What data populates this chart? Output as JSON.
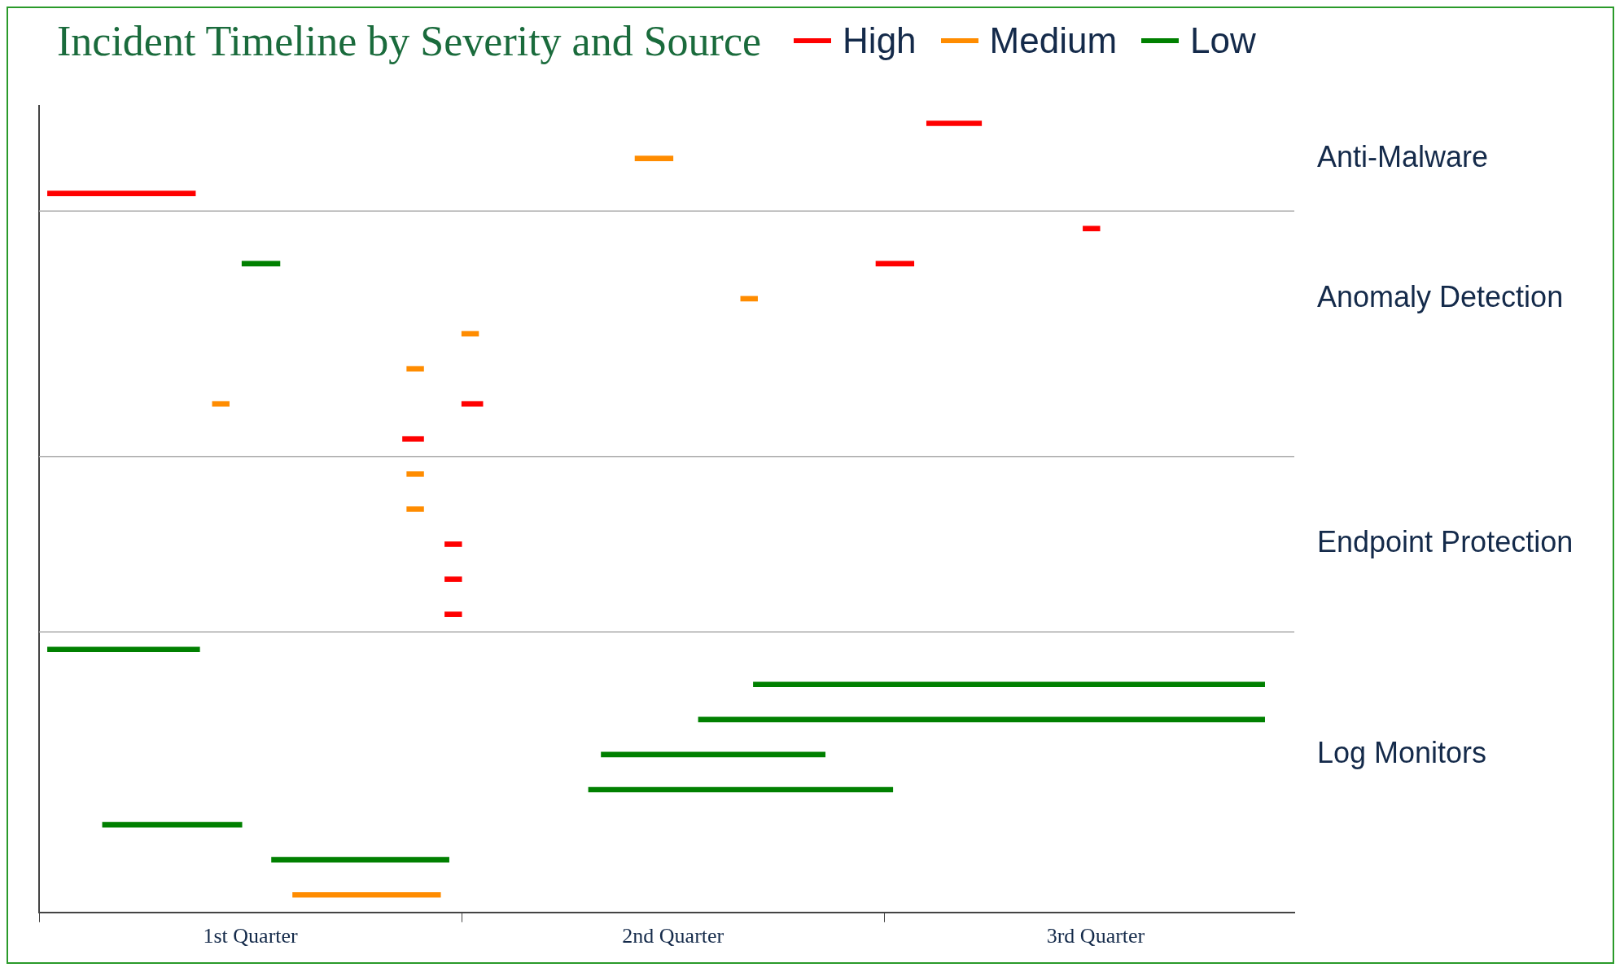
{
  "chart_data": {
    "type": "bar",
    "orientation": "horizontal",
    "title": "Incident Timeline by Severity and Source",
    "legend": "top",
    "categories": [
      null,
      null,
      null,
      null,
      null,
      null,
      null,
      null,
      null,
      null,
      null,
      null,
      null,
      null,
      null,
      null,
      null,
      null,
      null,
      null,
      null,
      null,
      null
    ],
    "y2_categories": [
      null,
      "Anti-Malware",
      null,
      null,
      null,
      "Anomaly Detection",
      null,
      null,
      null,
      null,
      null,
      null,
      "Endpoint Protection",
      null,
      null,
      null,
      null,
      null,
      "Log Monitors",
      null,
      null,
      null,
      null
    ],
    "series": [
      {
        "name": "High",
        "color": "#ff0000",
        "base": [
          2.6,
          null,
          0.52,
          2.97,
          2.48,
          null,
          null,
          null,
          1.5,
          1.36,
          null,
          null,
          1.46,
          1.46,
          1.46,
          null,
          null,
          null,
          null,
          null,
          null,
          null,
          null
        ],
        "values": [
          0.13,
          null,
          0.35,
          0.04,
          0.09,
          null,
          null,
          null,
          0.05,
          0.05,
          null,
          null,
          0.04,
          0.04,
          0.04,
          null,
          null,
          null,
          null,
          null,
          null,
          null,
          null
        ]
      },
      {
        "name": "Medium",
        "color": "#ff8c00",
        "base": [
          null,
          1.91,
          null,
          null,
          null,
          2.16,
          1.5,
          1.37,
          0.91,
          null,
          1.37,
          1.37,
          null,
          null,
          null,
          null,
          null,
          null,
          null,
          null,
          null,
          null,
          1.1
        ],
        "values": [
          null,
          0.09,
          null,
          null,
          null,
          0.04,
          0.04,
          0.04,
          0.04,
          null,
          0.04,
          0.04,
          null,
          null,
          null,
          null,
          null,
          null,
          null,
          null,
          null,
          null,
          0.35
        ]
      },
      {
        "name": "Low",
        "color": "#008000",
        "base": [
          null,
          null,
          null,
          null,
          0.98,
          null,
          null,
          null,
          null,
          null,
          null,
          null,
          null,
          null,
          null,
          0.52,
          2.19,
          2.06,
          1.83,
          1.8,
          0.65,
          1.05,
          null
        ],
        "values": [
          null,
          null,
          null,
          null,
          0.09,
          null,
          null,
          null,
          null,
          null,
          null,
          null,
          null,
          null,
          null,
          0.36,
          1.21,
          1.34,
          0.53,
          0.72,
          0.33,
          0.42,
          null
        ]
      }
    ],
    "xlim": [
      0.5,
      3.47
    ],
    "xticks": [
      {
        "value": 0.5,
        "label": null
      },
      {
        "value": 1,
        "label": "1st Quarter"
      },
      {
        "value": 1.5,
        "label": null
      },
      {
        "value": 2,
        "label": "2nd Quarter"
      },
      {
        "value": 2.5,
        "label": null
      },
      {
        "value": 3,
        "label": "3rd Quarter"
      }
    ]
  }
}
